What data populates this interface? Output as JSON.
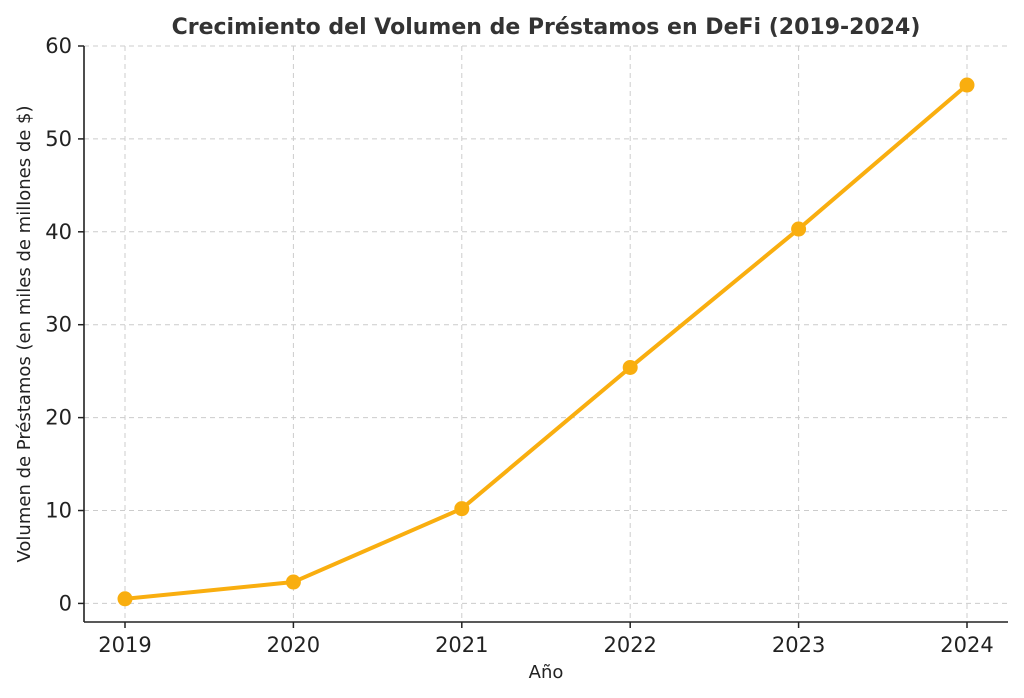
{
  "chart_data": {
    "type": "line",
    "title": "Crecimiento del Volumen de Préstamos en DeFi (2019-2024)",
    "xlabel": "Año",
    "ylabel": "Volumen de Préstamos (en miles de millones de $)",
    "x": [
      "2019",
      "2020",
      "2021",
      "2022",
      "2023",
      "2024"
    ],
    "series": [
      {
        "values": [
          0.5,
          2.3,
          10.2,
          25.4,
          40.3,
          55.8
        ],
        "color": "#F9AE0F"
      }
    ],
    "ylim": [
      -2,
      60
    ],
    "yticks": [
      0,
      10,
      20,
      30,
      40,
      50,
      60
    ],
    "grid": true,
    "marker": "circle"
  }
}
